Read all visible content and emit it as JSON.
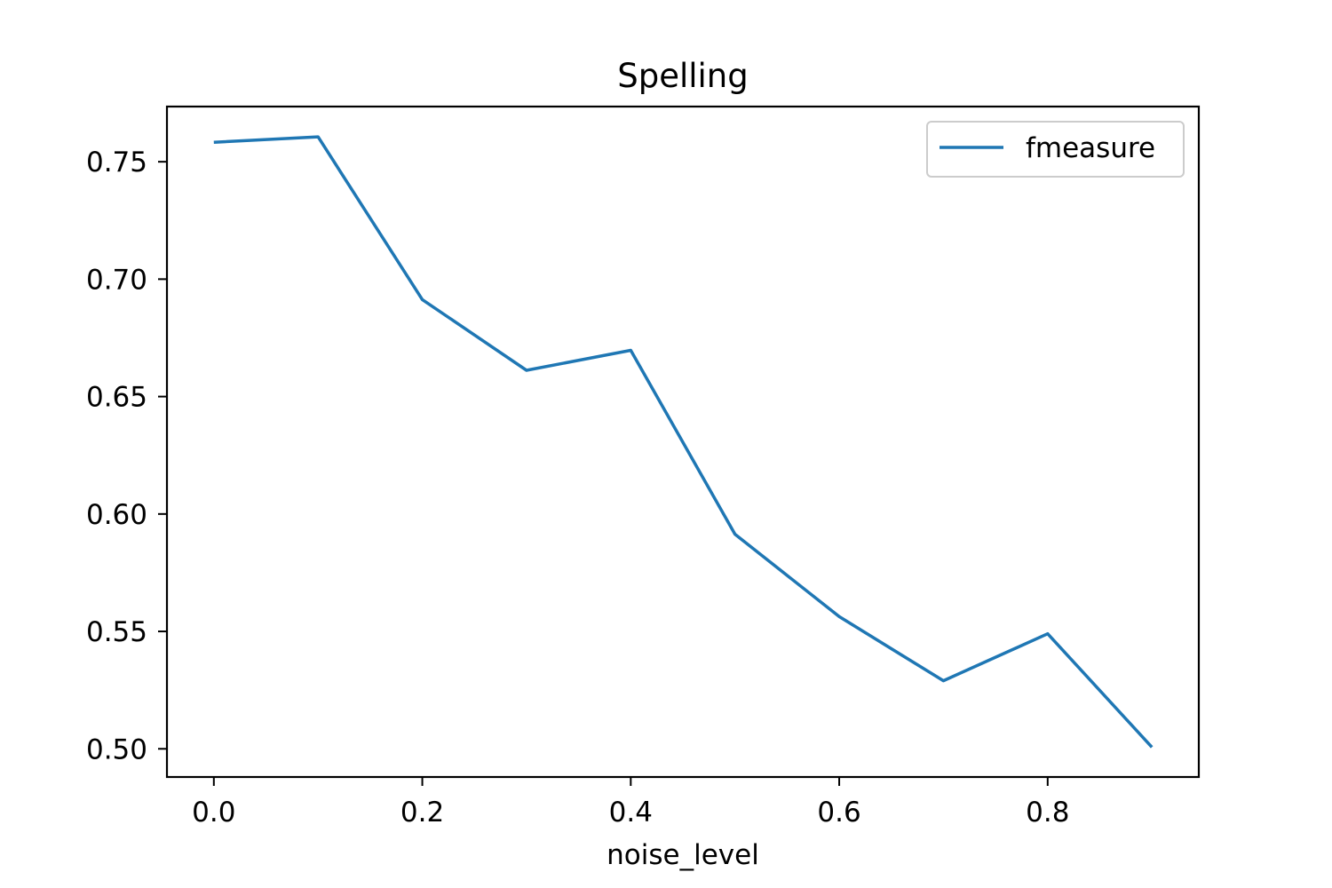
{
  "chart_data": {
    "type": "line",
    "title": "Spelling",
    "xlabel": "noise_level",
    "ylabel": "",
    "x": [
      0.0,
      0.1,
      0.2,
      0.3,
      0.4,
      0.5,
      0.6,
      0.7,
      0.8,
      0.9
    ],
    "series": [
      {
        "name": "fmeasure",
        "color": "#1f77b4",
        "values": [
          0.7583,
          0.7606,
          0.6913,
          0.6612,
          0.6697,
          0.5914,
          0.5563,
          0.529,
          0.549,
          0.5007
        ]
      }
    ],
    "xlim": [
      -0.045,
      0.945
    ],
    "ylim": [
      0.488,
      0.7735
    ],
    "xticks": [
      0.0,
      0.2,
      0.4,
      0.6,
      0.8
    ],
    "xtick_labels": [
      "0.0",
      "0.2",
      "0.4",
      "0.6",
      "0.8"
    ],
    "yticks": [
      0.5,
      0.55,
      0.6,
      0.65,
      0.7,
      0.75
    ],
    "ytick_labels": [
      "0.50",
      "0.55",
      "0.60",
      "0.65",
      "0.70",
      "0.75"
    ],
    "grid": false,
    "legend_position": "top-right"
  }
}
